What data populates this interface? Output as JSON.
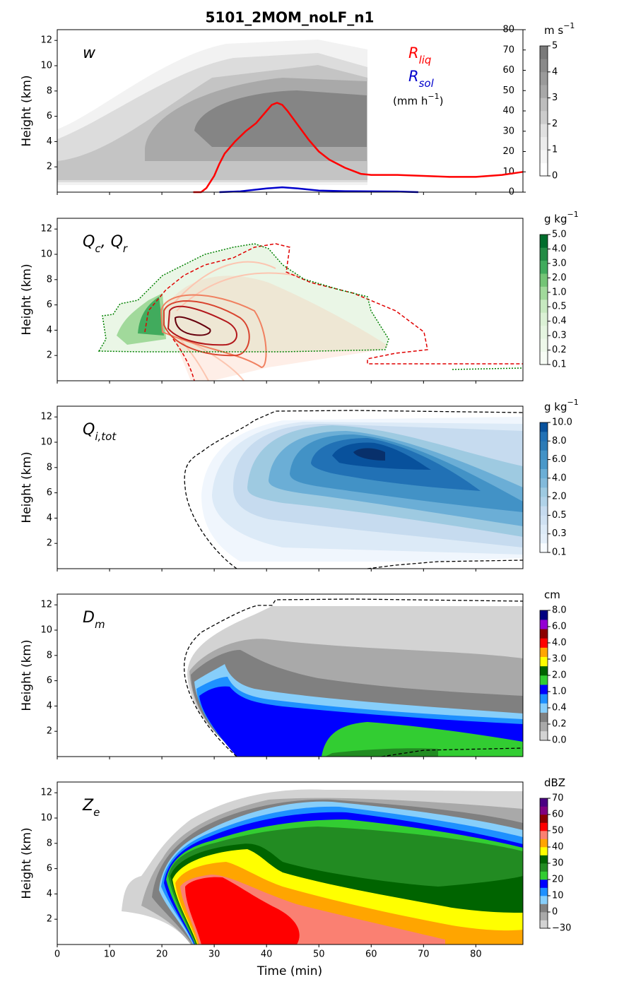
{
  "title": "5101_2MOM_noLF_n1",
  "x_label": "Time (min)",
  "chart_data": [
    {
      "type": "line",
      "label": [
        {
          "text": "w"
        }
      ],
      "y_label": "Height (km)",
      "xlim": [
        0,
        89
      ],
      "xticks": [
        0,
        10,
        20,
        30,
        40,
        50,
        60,
        70,
        80
      ],
      "ylim": [
        0,
        12.85
      ],
      "yticks": [
        2,
        4,
        6,
        8,
        10,
        12
      ],
      "y2lim": [
        0,
        80
      ],
      "y2ticks": [
        0,
        10,
        20,
        30,
        40,
        50,
        60,
        70,
        80
      ],
      "unit_label": [
        {
          "text": "(mm h"
        },
        {
          "text": "−1",
          "sup": true
        },
        {
          "text": ")"
        }
      ],
      "series": [
        {
          "name": [
            {
              "text": "R"
            },
            {
              "text": "liq",
              "sub": true
            }
          ],
          "color": "#ff0000",
          "axis": "y2",
          "x": [
            26,
            27.5,
            28.5,
            30,
            31,
            32,
            34,
            36,
            38,
            40,
            41,
            42,
            43,
            44,
            46,
            48,
            50,
            52,
            55,
            58,
            60,
            65,
            70,
            75,
            80,
            85,
            89
          ],
          "values": [
            0,
            0,
            2,
            8,
            14,
            19,
            25,
            30,
            34,
            40,
            43,
            44,
            43,
            40,
            33,
            26,
            20,
            16,
            12,
            9,
            8.5,
            8.5,
            8,
            7.5,
            7.5,
            8.5,
            10
          ]
        },
        {
          "name": [
            {
              "text": "R"
            },
            {
              "text": "sol",
              "sub": true
            }
          ],
          "color": "#0000cc",
          "axis": "y2",
          "x": [
            31,
            35,
            40,
            43,
            46,
            50,
            55,
            60,
            65,
            69
          ],
          "values": [
            0,
            0.4,
            1.8,
            2.4,
            1.8,
            0.8,
            0.5,
            0.4,
            0.3,
            0
          ]
        }
      ],
      "colorbar": {
        "units": [
          {
            "text": "m s"
          },
          {
            "text": "−1",
            "sup": true
          }
        ],
        "ticks": [
          0,
          1,
          2,
          3,
          4,
          5
        ],
        "colors": [
          "#ffffff",
          "#f5f5f5",
          "#ebebeb",
          "#e0e0e0",
          "#cccccc",
          "#bdbdbd",
          "#a8a8a8",
          "#9a9a9a",
          "#8a8a8a",
          "#7a7a7a"
        ]
      }
    },
    {
      "type": "contour",
      "label": [
        {
          "text": "Q"
        },
        {
          "text": "c",
          "sub": true
        },
        {
          "text": ", "
        },
        {
          "text": "Q"
        },
        {
          "text": "r",
          "sub": true
        }
      ],
      "y_label": "Height (km)",
      "xlim": [
        0,
        89
      ],
      "xticks": [
        0,
        10,
        20,
        30,
        40,
        50,
        60,
        70,
        80
      ],
      "ylim": [
        0,
        12.85
      ],
      "yticks": [
        2,
        4,
        6,
        8,
        10,
        12
      ],
      "colorbar": {
        "units": [
          {
            "text": "g kg"
          },
          {
            "text": "−1",
            "sup": true
          }
        ],
        "ticks": [
          0.1,
          0.2,
          0.3,
          0.4,
          0.5,
          {
            "value": 1,
            "label": "1.0"
          },
          {
            "value": 2,
            "label": "2.0"
          },
          {
            "value": 3,
            "label": "3.0"
          },
          {
            "value": 4,
            "label": "4.0"
          },
          {
            "value": 5,
            "label": "5.0"
          }
        ],
        "colors": [
          "#f7fcf5",
          "#eef8ea",
          "#e5f5e0",
          "#dbf1d5",
          "#c7e9c0",
          "#a1d99b",
          "#74c476",
          "#41ab5d",
          "#238b45",
          "#006d2c"
        ]
      }
    },
    {
      "type": "contour",
      "label": [
        {
          "text": "Q"
        },
        {
          "text": "i,tot",
          "sub": true
        }
      ],
      "y_label": "Height (km)",
      "xlim": [
        0,
        89
      ],
      "xticks": [
        0,
        10,
        20,
        30,
        40,
        50,
        60,
        70,
        80
      ],
      "ylim": [
        0,
        12.85
      ],
      "yticks": [
        2,
        4,
        6,
        8,
        10,
        12
      ],
      "colorbar": {
        "units": [
          {
            "text": "g kg"
          },
          {
            "text": "−1",
            "sup": true
          }
        ],
        "ticks": [
          0.1,
          0.3,
          0.5,
          {
            "value": 2,
            "label": "2.0"
          },
          {
            "value": 4,
            "label": "4.0"
          },
          {
            "value": 6,
            "label": "6.0"
          },
          {
            "value": 8,
            "label": "8.0"
          },
          {
            "value": 10,
            "label": "10.0"
          }
        ],
        "colors": [
          "#f7fbff",
          "#e3eef9",
          "#dceaf7",
          "#cfe1f2",
          "#c6dbef",
          "#b0d2e8",
          "#9ecae1",
          "#82badb",
          "#6baed6",
          "#4a98c9",
          "#4292c6",
          "#2c7bb6",
          "#2171b5",
          "#08519c"
        ]
      }
    },
    {
      "type": "contour",
      "label": [
        {
          "text": "D"
        },
        {
          "text": "m",
          "sub": true
        }
      ],
      "y_label": "Height (km)",
      "xlim": [
        0,
        89
      ],
      "xticks": [
        0,
        10,
        20,
        30,
        40,
        50,
        60,
        70,
        80
      ],
      "ylim": [
        0,
        12.85
      ],
      "yticks": [
        2,
        4,
        6,
        8,
        10,
        12
      ],
      "colorbar": {
        "units": [
          {
            "text": "cm"
          }
        ],
        "ticks": [
          {
            "value": 0,
            "label": "0.0"
          },
          0.2,
          0.4,
          {
            "value": 1,
            "label": "1.0"
          },
          {
            "value": 2,
            "label": "2.0"
          },
          {
            "value": 3,
            "label": "3.0"
          },
          {
            "value": 4,
            "label": "4.0"
          },
          {
            "value": 6,
            "label": "6.0"
          },
          {
            "value": 8,
            "label": "8.0"
          }
        ],
        "colors": [
          "#d3d3d3",
          "#a9a9a9",
          "#808080",
          "#87cefa",
          "#1e90ff",
          "#0000ff",
          "#32cd32",
          "#006400",
          "#ffff00",
          "#ffa500",
          "#ff0000",
          "#8b0000",
          "#9400d3",
          "#000080"
        ]
      }
    },
    {
      "type": "contour",
      "label": [
        {
          "text": "Z"
        },
        {
          "text": "e",
          "sub": true
        }
      ],
      "y_label": "Height (km)",
      "xlim": [
        0,
        89
      ],
      "xticks": [
        0,
        10,
        20,
        30,
        40,
        50,
        60,
        70,
        80
      ],
      "ylim": [
        0,
        12.85
      ],
      "yticks": [
        2,
        4,
        6,
        8,
        10,
        12
      ],
      "colorbar": {
        "units": [
          {
            "text": "dBZ"
          }
        ],
        "ticks": [
          {
            "value": -30,
            "label": "−30"
          },
          0,
          10,
          20,
          30,
          40,
          50,
          60,
          70
        ],
        "colors": [
          "#d3d3d3",
          "#a9a9a9",
          "#808080",
          "#87cefa",
          "#1e90ff",
          "#0000ff",
          "#32cd32",
          "#228b22",
          "#006400",
          "#ffff00",
          "#ffa500",
          "#fa8072",
          "#ff0000",
          "#8b0000",
          "#800080",
          "#4b0082"
        ]
      }
    }
  ]
}
